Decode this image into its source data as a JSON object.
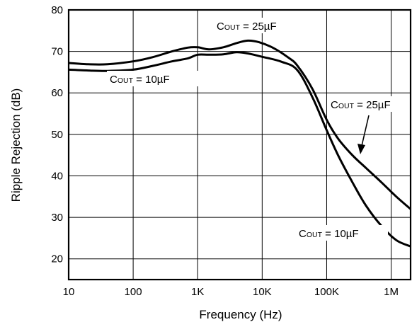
{
  "chart_data": {
    "type": "line",
    "xlabel": "Frequency (Hz)",
    "ylabel": "Ripple Rejection (dB)",
    "x_scale": "log",
    "xlim": [
      10,
      2000000
    ],
    "ylim": [
      15,
      80
    ],
    "grid": true,
    "x_ticks": [
      {
        "value": 10,
        "label": "10"
      },
      {
        "value": 100,
        "label": "100"
      },
      {
        "value": 1000,
        "label": "1K"
      },
      {
        "value": 10000,
        "label": "10K"
      },
      {
        "value": 100000,
        "label": "100K"
      },
      {
        "value": 1000000,
        "label": "1M"
      }
    ],
    "y_ticks": [
      {
        "value": 20,
        "label": "20"
      },
      {
        "value": 30,
        "label": "30"
      },
      {
        "value": 40,
        "label": "40"
      },
      {
        "value": 50,
        "label": "50"
      },
      {
        "value": 60,
        "label": "60"
      },
      {
        "value": 70,
        "label": "70"
      },
      {
        "value": 80,
        "label": "80"
      }
    ],
    "series": [
      {
        "label_main": "C",
        "label_sub": "OUT",
        "label_rest": " = 25µF",
        "points": [
          [
            10,
            67.2
          ],
          [
            20,
            66.9
          ],
          [
            40,
            66.9
          ],
          [
            100,
            67.6
          ],
          [
            200,
            68.6
          ],
          [
            400,
            70.0
          ],
          [
            700,
            70.9
          ],
          [
            1000,
            71.0
          ],
          [
            1500,
            70.5
          ],
          [
            2500,
            71.0
          ],
          [
            4000,
            72.0
          ],
          [
            6000,
            72.6
          ],
          [
            9000,
            72.2
          ],
          [
            15000,
            70.8
          ],
          [
            25000,
            68.6
          ],
          [
            35000,
            66.6
          ],
          [
            60000,
            61.0
          ],
          [
            100000,
            53.5
          ],
          [
            150000,
            49.0
          ],
          [
            250000,
            45.0
          ],
          [
            400000,
            42.0
          ],
          [
            700000,
            38.5
          ],
          [
            1200000,
            35.0
          ],
          [
            2000000,
            32.0
          ]
        ]
      },
      {
        "label_main": "C",
        "label_sub": "OUT",
        "label_rest": " = 10µF",
        "points": [
          [
            10,
            65.6
          ],
          [
            20,
            65.4
          ],
          [
            40,
            65.3
          ],
          [
            100,
            65.6
          ],
          [
            200,
            66.5
          ],
          [
            400,
            67.6
          ],
          [
            700,
            68.3
          ],
          [
            1000,
            69.2
          ],
          [
            1500,
            69.2
          ],
          [
            2500,
            69.3
          ],
          [
            4000,
            69.8
          ],
          [
            6000,
            69.5
          ],
          [
            10000,
            68.7
          ],
          [
            20000,
            67.5
          ],
          [
            35000,
            65.5
          ],
          [
            60000,
            59.0
          ],
          [
            100000,
            51.0
          ],
          [
            150000,
            45.0
          ],
          [
            250000,
            38.5
          ],
          [
            400000,
            33.0
          ],
          [
            700000,
            28.0
          ],
          [
            1200000,
            24.5
          ],
          [
            2000000,
            23.0
          ]
        ]
      }
    ]
  }
}
